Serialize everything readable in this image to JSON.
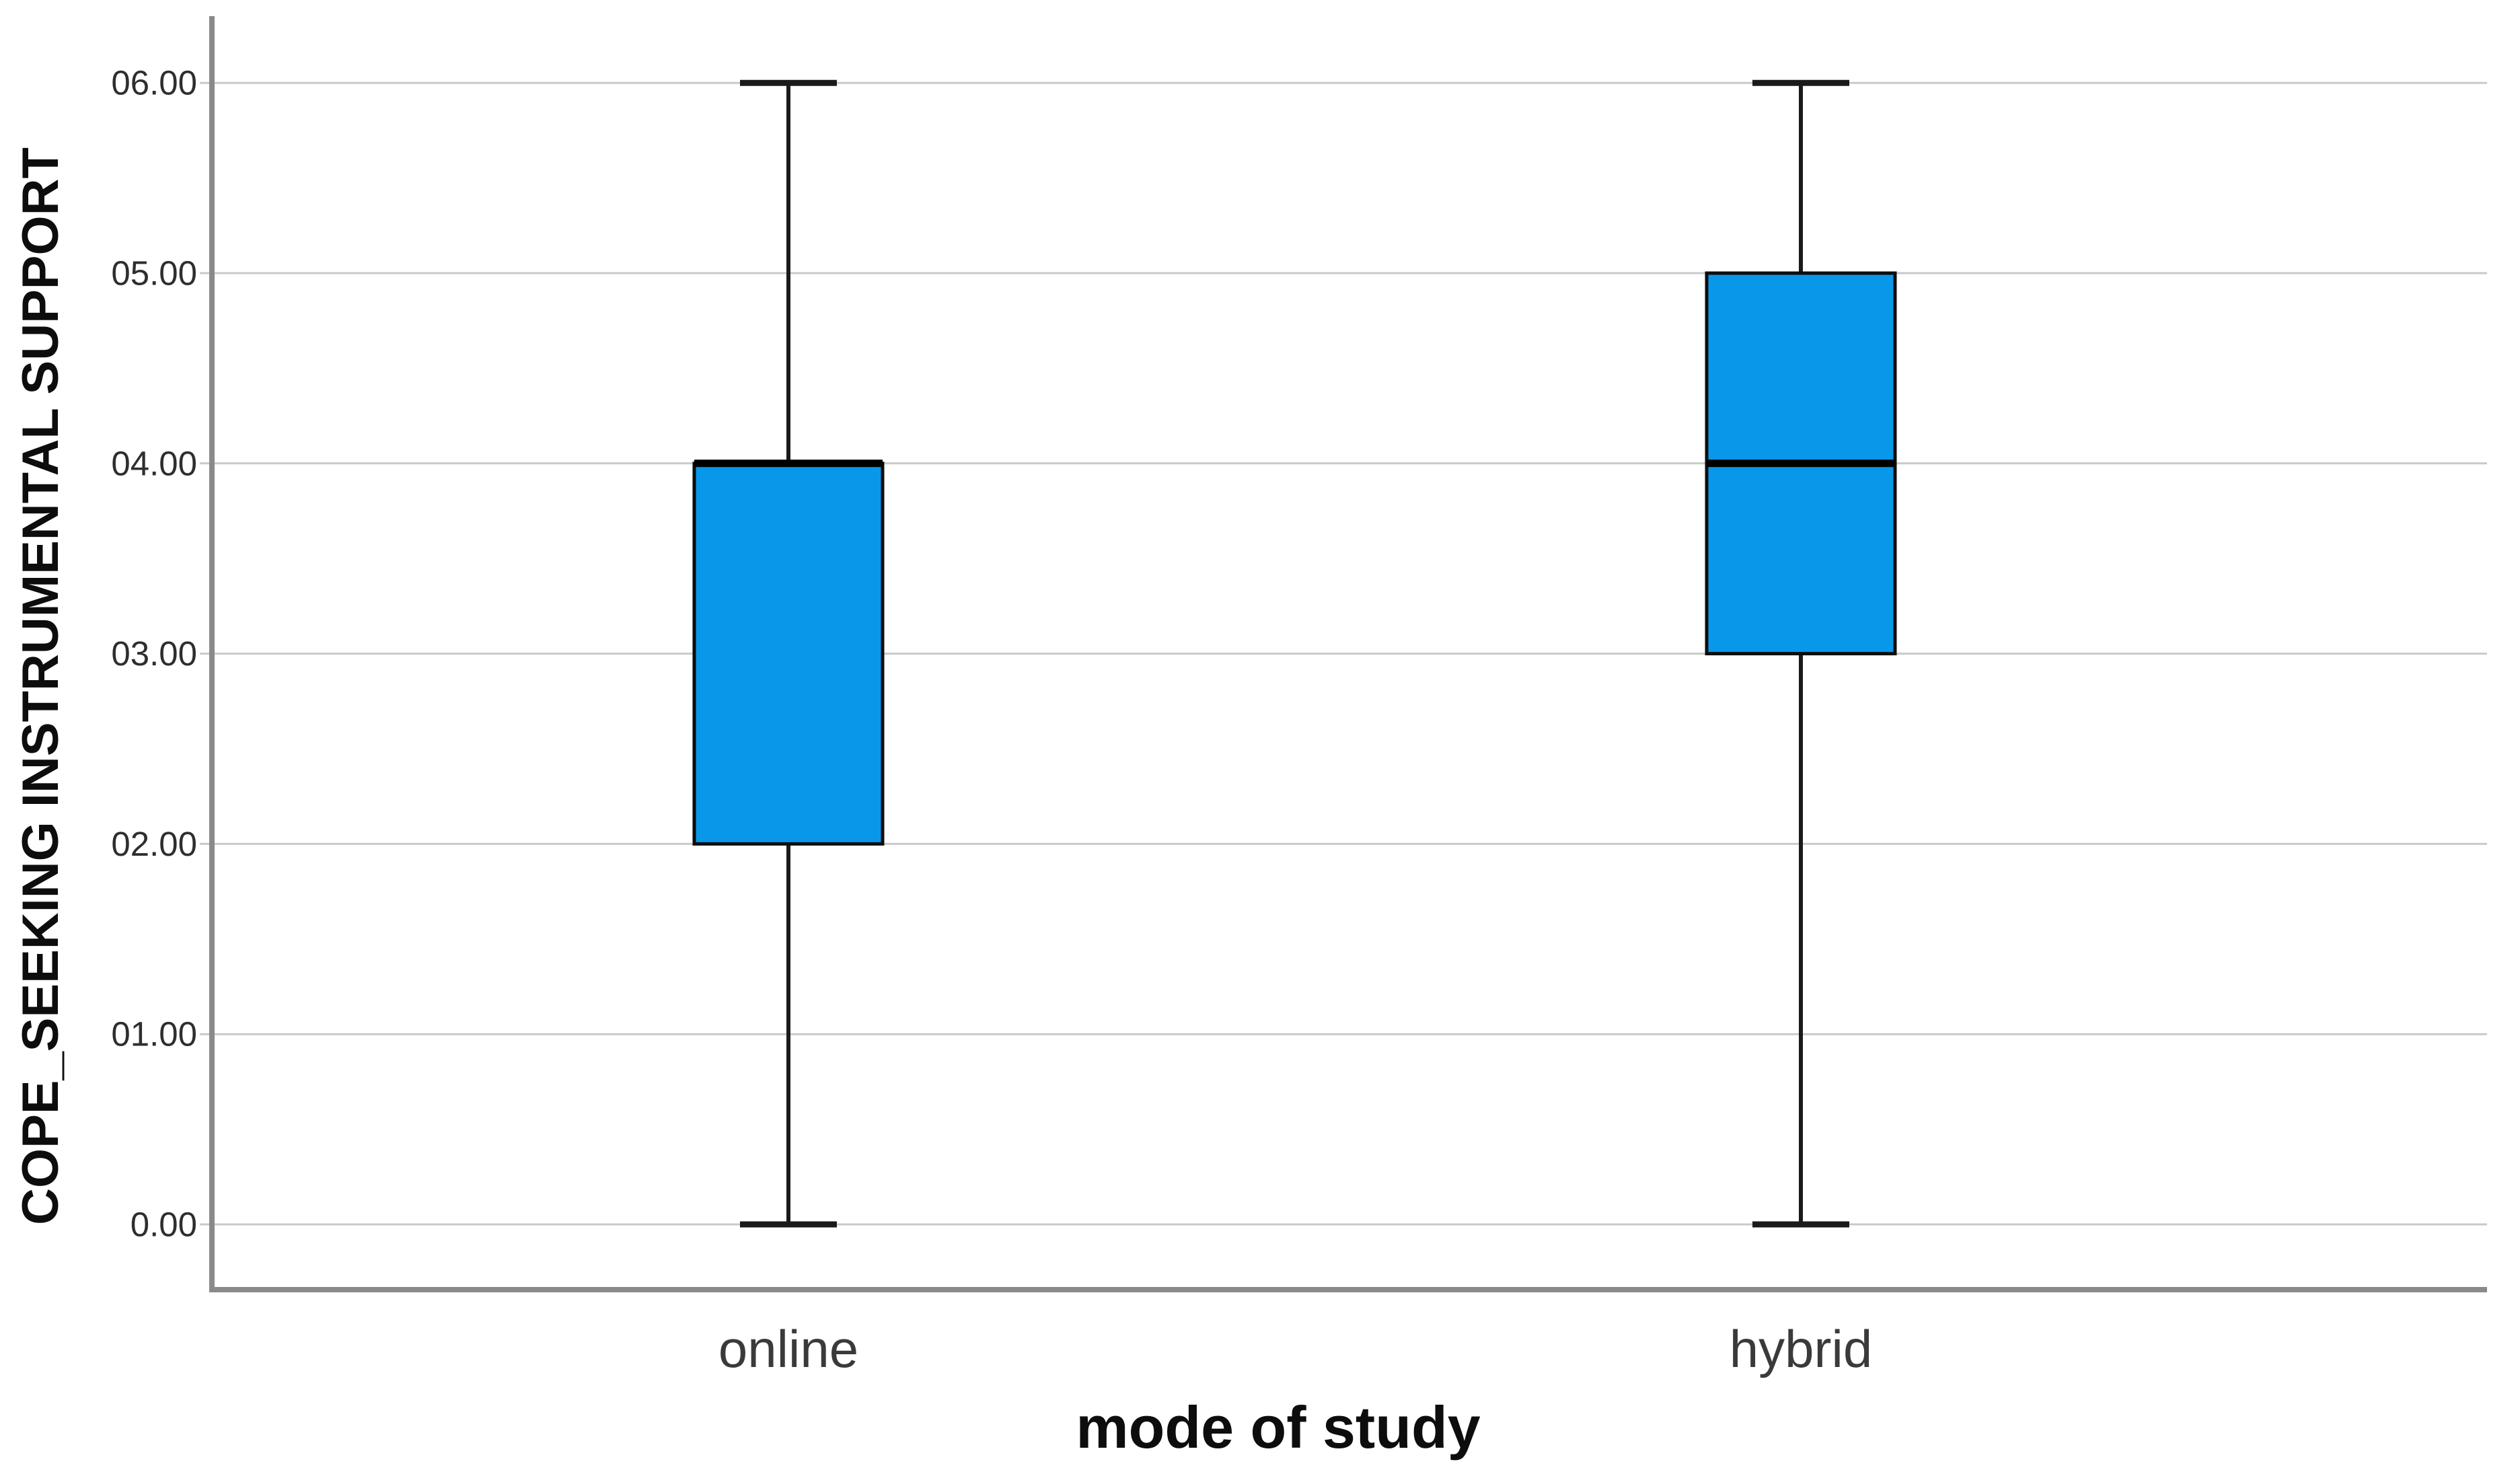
{
  "chart_data": {
    "type": "boxplot",
    "title": "",
    "ylabel": "COPE_SEEKING INSTRUMENTAL SUPPORT",
    "xlabel": "mode of study",
    "categories": [
      "online",
      "hybrid"
    ],
    "yticks": [
      {
        "label": "0.00",
        "value": 0
      },
      {
        "label": "01.00",
        "value": 1
      },
      {
        "label": "02.00",
        "value": 2
      },
      {
        "label": "03.00",
        "value": 3
      },
      {
        "label": "04.00",
        "value": 4
      },
      {
        "label": "05.00",
        "value": 5
      },
      {
        "label": "06.00",
        "value": 6
      }
    ],
    "ylim": [
      -0.34,
      6.35
    ],
    "grid": "horizontal",
    "legend_position": "none",
    "series": [
      {
        "category": "online",
        "whisker_low": 0.0,
        "q1": 2.0,
        "median": 4.0,
        "q3": 4.0,
        "whisker_high": 6.0,
        "outliers": []
      },
      {
        "category": "hybrid",
        "whisker_low": 0.0,
        "q1": 3.0,
        "median": 4.0,
        "q3": 5.0,
        "whisker_high": 6.0,
        "outliers": []
      }
    ],
    "colors": {
      "box_fill": "#0998E9",
      "box_border": "#0d0d0d",
      "median_line": "#000000",
      "whisker": "#1a1a1a",
      "gridline": "#c9c9c9",
      "axis_frame": "#8a8a8a",
      "tick_label": "#2e2e2e",
      "category_label": "#3a3a3a",
      "background": "#ffffff"
    }
  }
}
